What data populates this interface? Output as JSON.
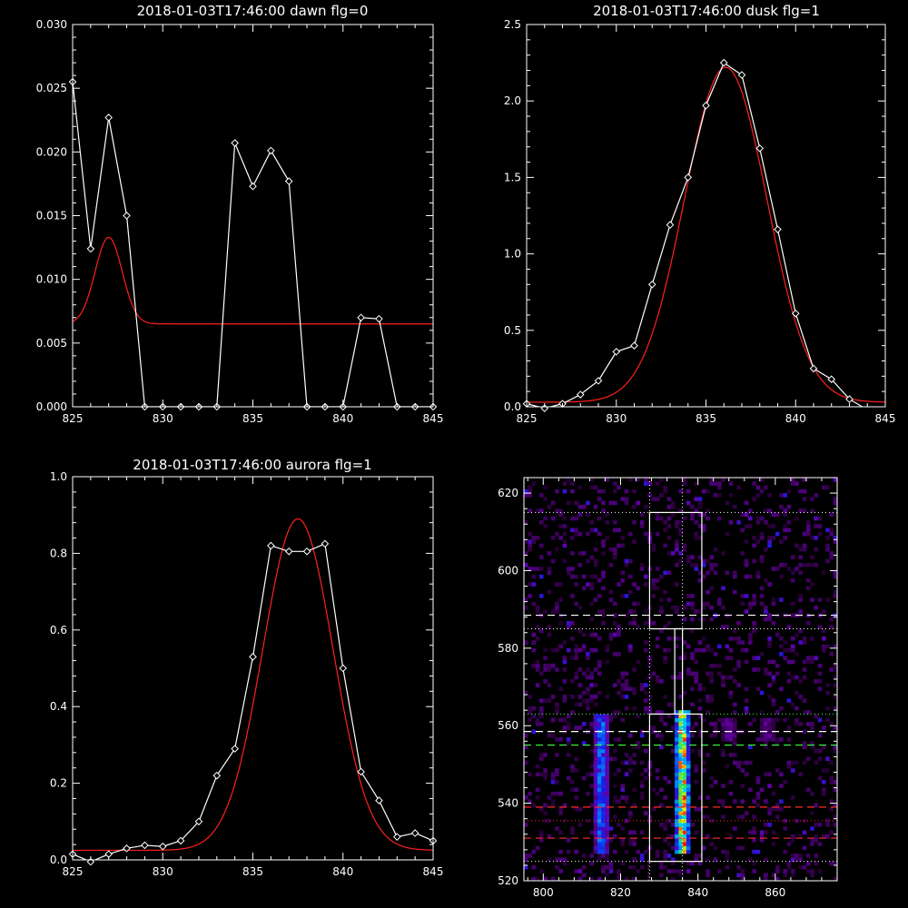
{
  "colors": {
    "background": "#000000",
    "axes": "#ffffff",
    "data_line": "#ffffff",
    "fit_line": "#ff2020",
    "green_line": "#3cff3c",
    "red_line": "#ff2a2a",
    "magenta_dots": "#c040c0"
  },
  "chart_data": [
    {
      "type": "line",
      "title": "2018-01-03T17:46:00 dawn flg=0",
      "xlim": [
        825,
        845
      ],
      "ylim": [
        0,
        0.03
      ],
      "xticks": [
        825,
        830,
        835,
        840,
        845
      ],
      "xtick_labels": [
        "825",
        "830",
        "835",
        "840",
        "845"
      ],
      "yticks": [
        0,
        0.005,
        0.01,
        0.015,
        0.02,
        0.025,
        0.03
      ],
      "ytick_labels": [
        "0.000",
        "0.005",
        "0.010",
        "0.015",
        "0.020",
        "0.025",
        "0.030"
      ],
      "markers": "diamond",
      "series": [
        {
          "x": [
            825,
            826,
            827,
            828,
            829,
            830,
            831,
            832,
            833,
            834,
            835,
            836,
            837,
            838,
            839,
            840,
            841,
            842,
            843,
            844,
            845
          ],
          "values": [
            0.0255,
            0.0124,
            0.0227,
            0.015,
            0,
            0,
            0,
            0,
            0,
            0.0207,
            0.0173,
            0.0201,
            0.0177,
            0,
            0,
            0,
            0.007,
            0.0069,
            0,
            0,
            0
          ]
        },
        {
          "fit": "gaussian",
          "amp": 0.0068,
          "center": 827.0,
          "sigma": 0.75,
          "offset": 0.0065
        }
      ]
    },
    {
      "type": "line",
      "title": "2018-01-03T17:46:00 dusk flg=1",
      "xlim": [
        825,
        845
      ],
      "ylim": [
        0,
        2.5
      ],
      "xticks": [
        825,
        830,
        835,
        840,
        845
      ],
      "xtick_labels": [
        "825",
        "830",
        "835",
        "840",
        "845"
      ],
      "yticks": [
        0,
        0.5,
        1.0,
        1.5,
        2.0,
        2.5
      ],
      "ytick_labels": [
        "0.0",
        "0.5",
        "1.0",
        "1.5",
        "2.0",
        "2.5"
      ],
      "markers": "diamond",
      "series": [
        {
          "x": [
            825,
            826,
            827,
            828,
            829,
            830,
            831,
            832,
            833,
            834,
            835,
            836,
            837,
            838,
            839,
            840,
            841,
            842,
            843,
            844,
            845
          ],
          "values": [
            0.02,
            -0.01,
            0.02,
            0.08,
            0.17,
            0.36,
            0.4,
            0.8,
            1.19,
            1.5,
            1.97,
            2.25,
            2.17,
            1.69,
            1.16,
            0.61,
            0.25,
            0.18,
            0.05,
            -0.02,
            -0.03
          ]
        },
        {
          "fit": "gaussian",
          "amp": 2.19,
          "center": 836.1,
          "sigma": 2.3,
          "offset": 0.03
        }
      ]
    },
    {
      "type": "line",
      "title": "2018-01-03T17:46:00 aurora flg=1",
      "xlim": [
        825,
        845
      ],
      "ylim": [
        0,
        1.0
      ],
      "xticks": [
        825,
        830,
        835,
        840,
        845
      ],
      "xtick_labels": [
        "825",
        "830",
        "835",
        "840",
        "845"
      ],
      "yticks": [
        0,
        0.2,
        0.4,
        0.6,
        0.8,
        1.0
      ],
      "ytick_labels": [
        "0.0",
        "0.2",
        "0.4",
        "0.6",
        "0.8",
        "1.0"
      ],
      "markers": "diamond",
      "series": [
        {
          "x": [
            825,
            826,
            827,
            828,
            829,
            830,
            831,
            832,
            833,
            834,
            835,
            836,
            837,
            838,
            839,
            840,
            841,
            842,
            843,
            844,
            845
          ],
          "values": [
            0.015,
            -0.005,
            0.015,
            0.03,
            0.038,
            0.035,
            0.05,
            0.1,
            0.22,
            0.29,
            0.53,
            0.82,
            0.805,
            0.805,
            0.825,
            0.5,
            0.23,
            0.155,
            0.06,
            0.07,
            0.05
          ]
        },
        {
          "fit": "gaussian",
          "amp": 0.865,
          "center": 837.5,
          "sigma": 1.95,
          "offset": 0.025
        }
      ]
    },
    {
      "type": "heatmap",
      "xlim": [
        795,
        876
      ],
      "ylim": [
        520,
        624
      ],
      "xticks": [
        800,
        820,
        840,
        860
      ],
      "xtick_labels": [
        "800",
        "820",
        "840",
        "860"
      ],
      "yticks": [
        520,
        540,
        560,
        580,
        600,
        620
      ],
      "ytick_labels": [
        "520",
        "540",
        "560",
        "580",
        "600",
        "620"
      ],
      "bright_columns": [
        {
          "center": 815,
          "width": 3,
          "from": 527,
          "to": 562,
          "peak": 0.55
        },
        {
          "center": 836,
          "width": 3,
          "from": 527,
          "to": 563,
          "peak": 1.0
        },
        {
          "center": 848,
          "width": 3,
          "from": 556,
          "to": 561,
          "peak": 0.25
        },
        {
          "center": 858,
          "width": 2,
          "from": 556,
          "to": 561,
          "peak": 0.25
        }
      ],
      "boxes": [
        {
          "x": [
            827.5,
            841
          ],
          "y": [
            525,
            563
          ]
        },
        {
          "x": [
            827.5,
            841
          ],
          "y": [
            585,
            615
          ]
        },
        {
          "x": [
            834,
            836
          ],
          "y": [
            563,
            585
          ]
        }
      ],
      "vlines_dotted": [
        827.5,
        836
      ],
      "hlines_white_dotted": [
        615,
        585,
        525
      ],
      "hlines_white_dashed": [
        588.5,
        558.5
      ],
      "hlines_green_dotted": [
        563
      ],
      "hlines_green_dashed": [
        555
      ],
      "hlines_red_dashed": [
        539,
        531
      ],
      "hlines_red_dotted": [
        535.5
      ],
      "magenta_dotted_x": [
        827.5
      ]
    }
  ]
}
